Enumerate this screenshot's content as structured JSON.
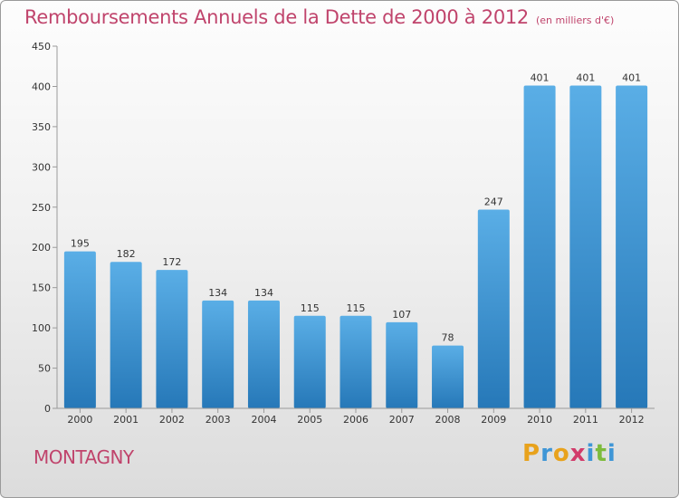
{
  "chart_data": {
    "type": "bar",
    "title": "Remboursements Annuels de la Dette de 2000 à 2012",
    "unit": "(en milliers d'€)",
    "categories": [
      "2000",
      "2001",
      "2002",
      "2003",
      "2004",
      "2005",
      "2006",
      "2007",
      "2008",
      "2009",
      "2010",
      "2011",
      "2012"
    ],
    "values": [
      195,
      182,
      172,
      134,
      134,
      115,
      115,
      107,
      78,
      247,
      401,
      401,
      401
    ],
    "ylim": [
      0,
      450
    ],
    "yticks": [
      0,
      50,
      100,
      150,
      200,
      250,
      300,
      350,
      400,
      450
    ],
    "xlabel": "",
    "ylabel": "",
    "grid": false,
    "bar_color_top": "#5aaee6",
    "bar_color_bottom": "#2678b8"
  },
  "commune": "MONTAGNY",
  "logo": {
    "letters": [
      "P",
      "r",
      "o",
      "x",
      "i",
      "t",
      "i"
    ],
    "colors": [
      "#e8a21c",
      "#3f96d6",
      "#e8a21c",
      "#d23b6a",
      "#3f96d6",
      "#7dbb3c",
      "#3f96d6"
    ]
  },
  "colors": {
    "accent": "#c0446c",
    "axis": "#9a9a9a",
    "label": "#333333"
  }
}
